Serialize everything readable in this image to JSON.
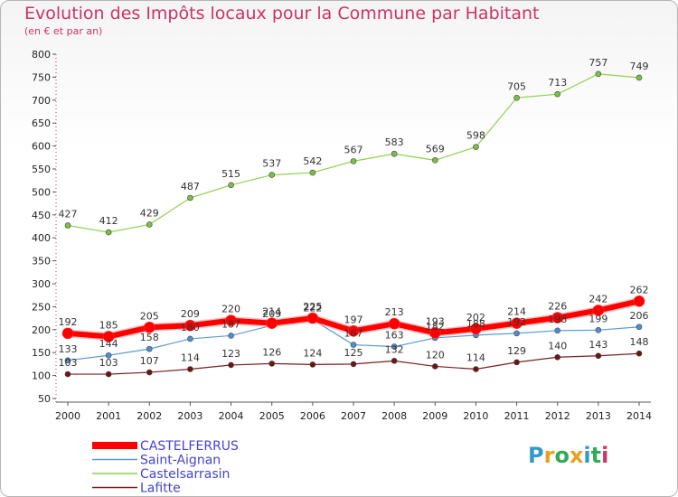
{
  "header": {
    "title": "Evolution des Impôts locaux pour la Commune par Habitant",
    "subtitle": "(en € et par an)"
  },
  "logo": {
    "text": "Proxiti",
    "colors": [
      "#3399cc",
      "#e8a020",
      "#33aa55",
      "#e8a020",
      "#3399cc",
      "#33aa55",
      "#cc3366"
    ]
  },
  "chart_data": {
    "type": "line",
    "title": "Evolution des Impôts locaux pour la Commune par Habitant",
    "subtitle": "(en € et par an)",
    "x": [
      2000,
      2001,
      2002,
      2003,
      2004,
      2005,
      2006,
      2007,
      2008,
      2009,
      2010,
      2011,
      2012,
      2013,
      2014
    ],
    "ylim": [
      50,
      800
    ],
    "yticks": [
      50,
      100,
      150,
      200,
      250,
      300,
      350,
      400,
      450,
      500,
      550,
      600,
      650,
      700,
      750,
      800
    ],
    "grid": false,
    "legend_position": "bottom-left",
    "series": [
      {
        "name": "Castelsarrasin",
        "color": "#8fd14f",
        "dot": "#7bc043",
        "width": 1.2,
        "values": [
          427,
          412,
          429,
          487,
          515,
          537,
          542,
          567,
          583,
          569,
          598,
          705,
          713,
          757,
          749
        ]
      },
      {
        "name": "Saint-Aignan",
        "color": "#5b9bd5",
        "dot": "#4f8fcf",
        "width": 1.2,
        "values": [
          133,
          144,
          158,
          180,
          187,
          209,
          222,
          167,
          163,
          182,
          188,
          192,
          198,
          199,
          206
        ]
      },
      {
        "name": "Lafitte",
        "color": "#7b2020",
        "dot": "#6b1515",
        "width": 1.2,
        "values": [
          103,
          103,
          107,
          114,
          123,
          126,
          124,
          125,
          132,
          120,
          114,
          129,
          140,
          143,
          148
        ]
      },
      {
        "name": "CASTELFERRUS",
        "color": "#ff0000",
        "dot": "#ff0000",
        "width": 6,
        "values": [
          192,
          185,
          205,
          209,
          220,
          214,
          225,
          197,
          213,
          193,
          202,
          214,
          226,
          242,
          262
        ]
      }
    ],
    "legend": [
      {
        "name": "CASTELFERRUS",
        "color": "#ff0000",
        "text_color": "#4444cc",
        "width": 8
      },
      {
        "name": "Saint-Aignan",
        "color": "#5b9bd5",
        "text_color": "#4444cc",
        "width": 1.5
      },
      {
        "name": "Castelsarrasin",
        "color": "#8fd14f",
        "text_color": "#4444cc",
        "width": 1.5
      },
      {
        "name": "Lafitte",
        "color": "#7b2020",
        "text_color": "#4444cc",
        "width": 1.5
      }
    ]
  }
}
